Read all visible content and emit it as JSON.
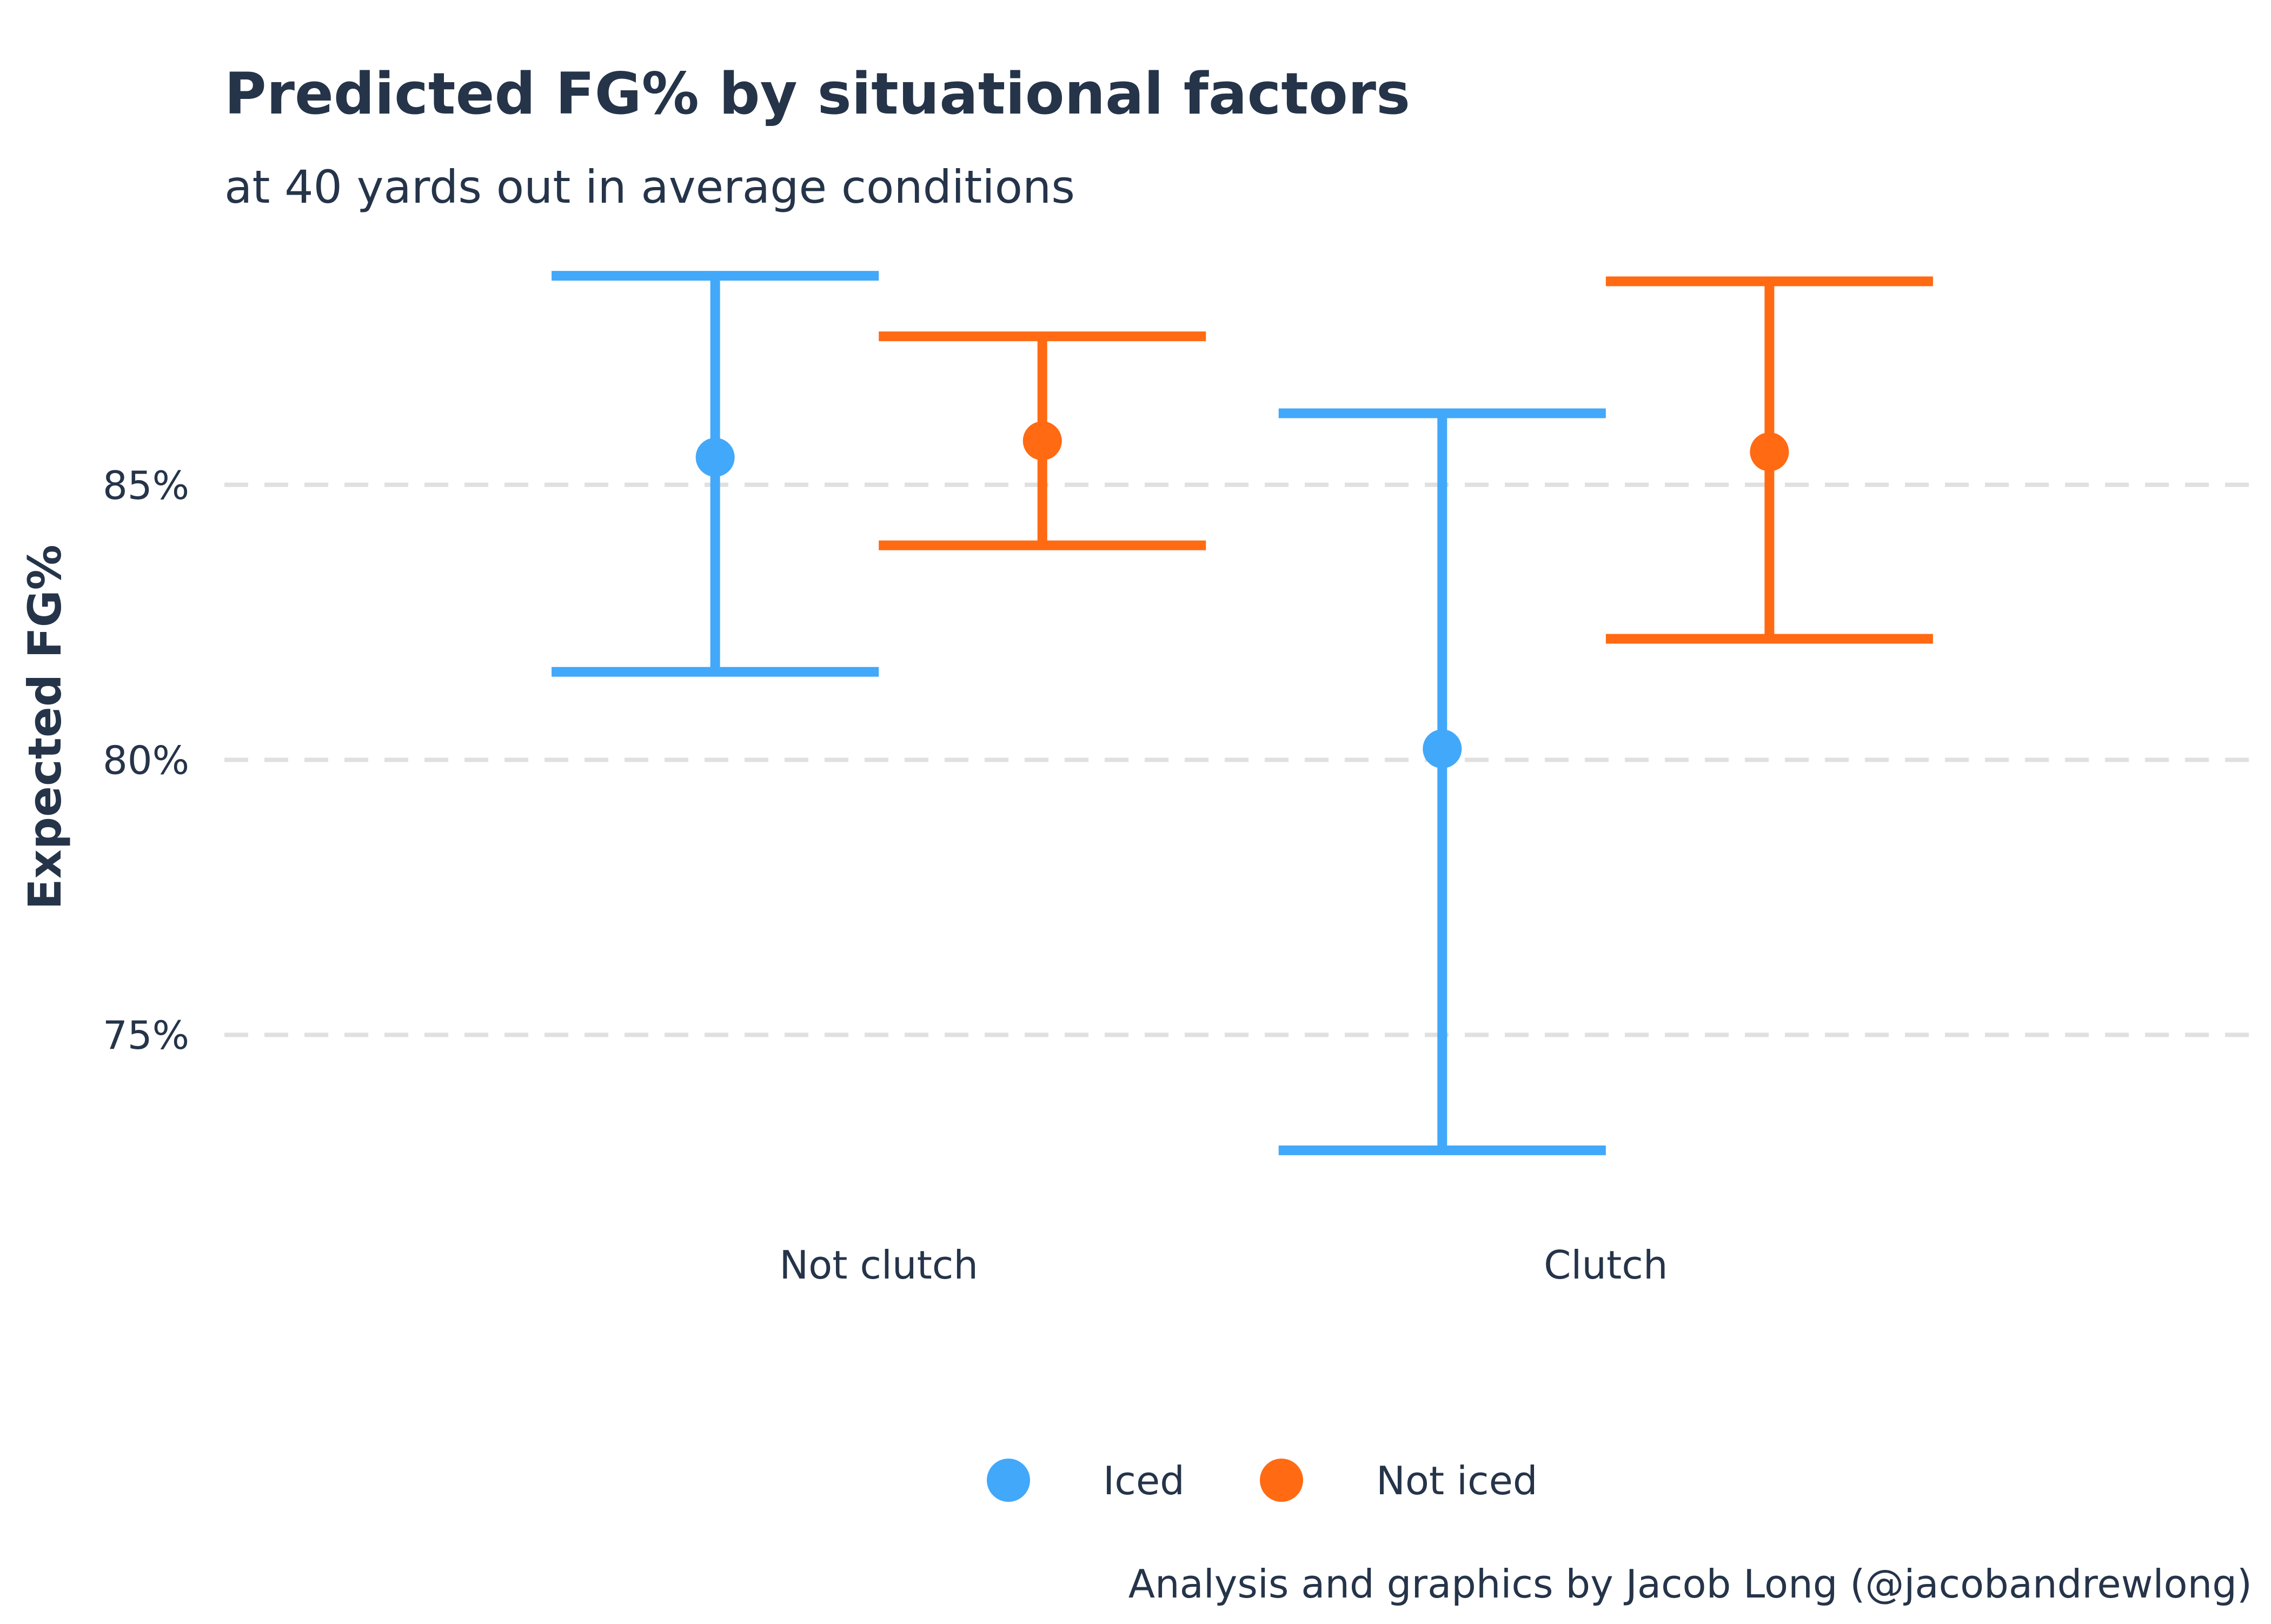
{
  "colors": {
    "iced": "#42A8FA",
    "not_iced": "#FF6A13",
    "text": "#253449",
    "grid": "#E0E0E0"
  },
  "chart_data": {
    "type": "errorbar",
    "title": "Predicted FG% by situational factors",
    "subtitle": "at 40 yards out in average conditions",
    "caption": "Analysis and graphics by Jacob Long (@jacobandrewlong)",
    "ylabel": "Expected FG%",
    "xlabel": "",
    "ylim": [
      71.7,
      88.9
    ],
    "yticks": [
      75,
      80,
      85
    ],
    "ytick_labels": [
      "75%",
      "80%",
      "85%"
    ],
    "grid": "horizontal dashed",
    "legend_position": "bottom",
    "categories": [
      "Not clutch",
      "Clutch"
    ],
    "series": [
      {
        "name": "Iced",
        "color": "#42A8FA",
        "estimate": [
          85.5,
          80.2
        ],
        "lower": [
          81.6,
          72.9
        ],
        "upper": [
          88.8,
          86.3
        ]
      },
      {
        "name": "Not iced",
        "color": "#FF6A13",
        "estimate": [
          85.8,
          85.6
        ],
        "lower": [
          83.9,
          82.2
        ],
        "upper": [
          87.7,
          88.7
        ]
      }
    ]
  }
}
